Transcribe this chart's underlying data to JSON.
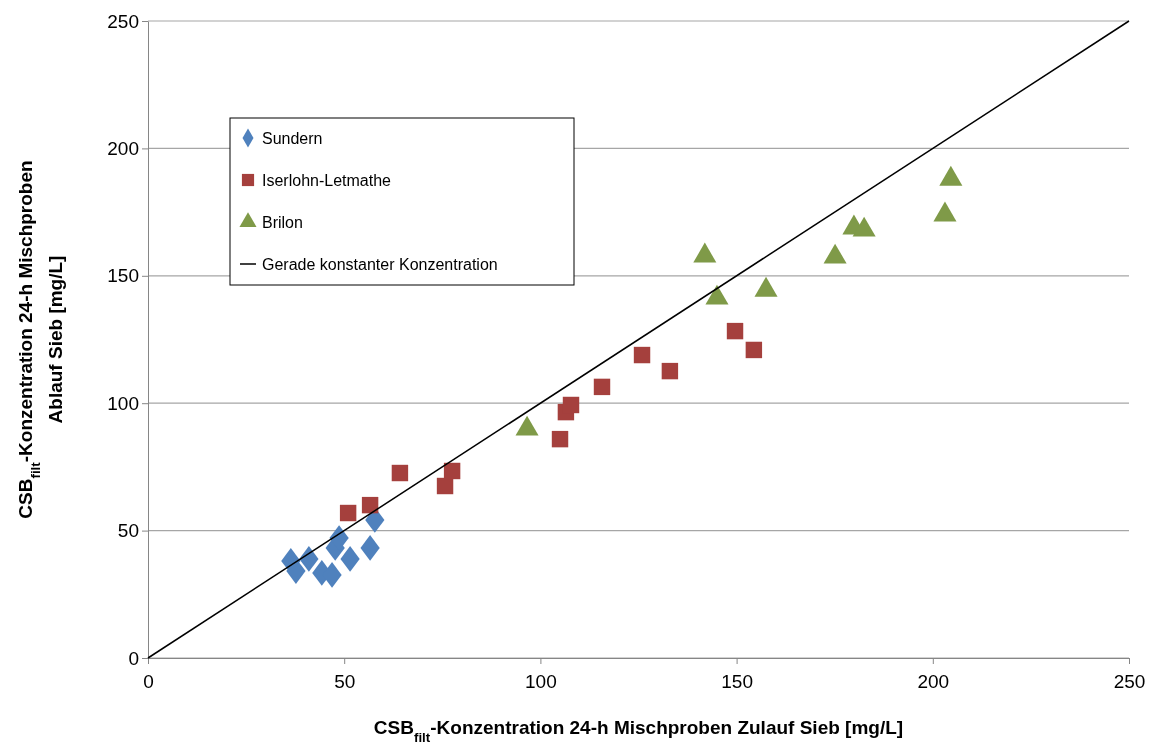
{
  "chart_data": {
    "type": "scatter",
    "xlabel": "CSB$_{filt}$-Konzentration 24-h Mischproben Zulauf Sieb [mg/L]",
    "ylabel": "CSB$_{filt}$-Konzentration 24-h Mischproben\nAblauf Sieb [mg/L]",
    "xlim": [
      0,
      250
    ],
    "ylim": [
      0,
      250
    ],
    "xticks": [
      0,
      50,
      100,
      150,
      200,
      250
    ],
    "yticks": [
      0,
      50,
      100,
      150,
      200,
      250
    ],
    "grid": "y",
    "legend": "top left",
    "series": [
      {
        "name": "Sundern",
        "color": "#4f81bd",
        "marker": "diamond",
        "x": [
          36.4,
          37.7,
          41.0,
          44.3,
          46.9,
          47.7,
          48.7,
          51.5,
          56.6,
          57.8
        ],
        "values": [
          38.1,
          34.1,
          38.9,
          33.4,
          32.6,
          43.2,
          47.1,
          38.9,
          43.2,
          54.2
        ]
      },
      {
        "name": "Iserlohn-Letmathe",
        "color": "#a5403d",
        "marker": "square",
        "x": [
          51.0,
          56.6,
          64.2,
          75.7,
          77.5,
          105.0,
          106.5,
          107.8,
          115.7,
          125.9,
          133.0,
          149.6,
          154.4
        ],
        "values": [
          56.9,
          60.0,
          72.6,
          67.5,
          73.4,
          85.9,
          96.5,
          99.3,
          106.4,
          118.9,
          112.6,
          128.3,
          120.9
        ]
      },
      {
        "name": "Brilon",
        "color": "#7f9a48",
        "marker": "triangle",
        "x": [
          96.6,
          141.9,
          145.0,
          157.5,
          175.1,
          179.9,
          182.5,
          203.1,
          204.6
        ],
        "values": [
          89.9,
          157.8,
          141.3,
          144.4,
          157.4,
          168.8,
          168.0,
          173.9,
          188.0
        ]
      },
      {
        "name": "Gerade konstanter Konzentration",
        "type": "line",
        "color": "#000000",
        "marker": "none",
        "line_style": "solid",
        "x": [
          0,
          250
        ],
        "values": [
          0,
          250
        ]
      }
    ]
  }
}
